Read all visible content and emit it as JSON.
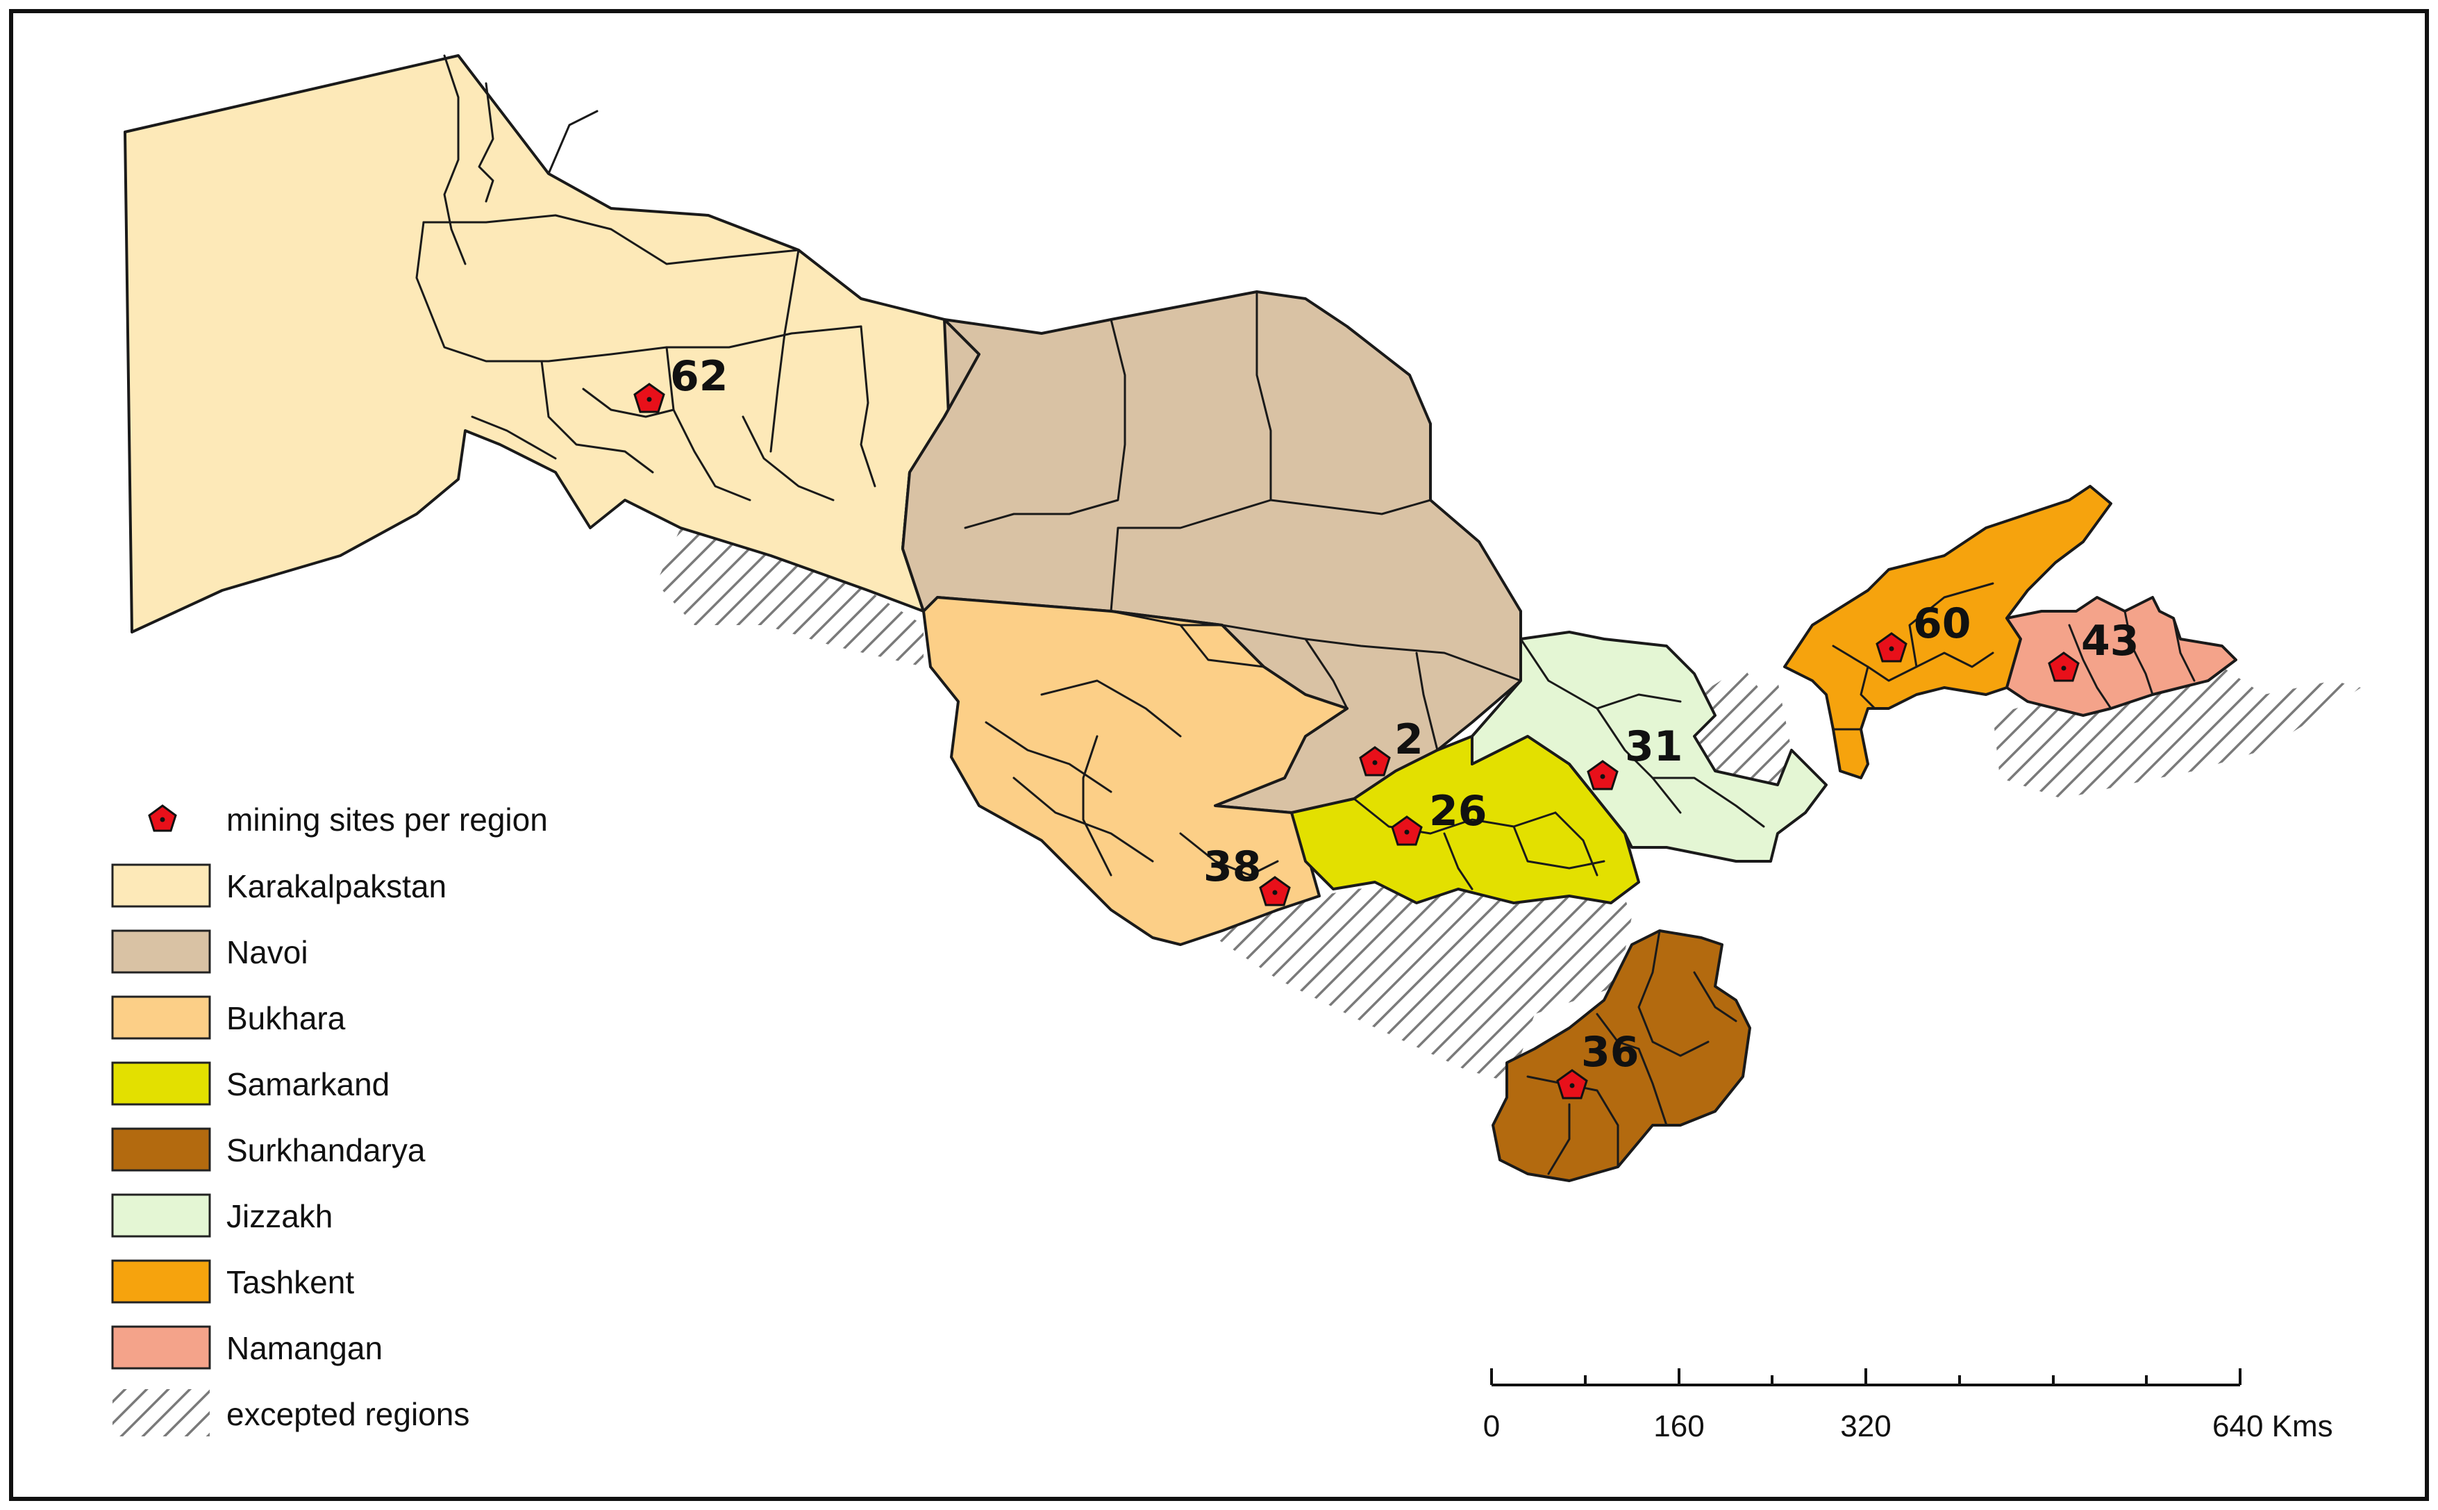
{
  "colors": {
    "karakalpakstan": "#fde9b8",
    "navoi": "#d9c2a4",
    "bukhara": "#fccf87",
    "samarkand": "#e3e000",
    "surkhandarya": "#b36a0f",
    "jizzakh": "#e4f6d4",
    "tashkent": "#f6a30d",
    "namangan": "#f4a38a",
    "marker": "#e8101a",
    "hatch": "#7a7a7a"
  },
  "regions": [
    {
      "id": "karakalpakstan",
      "count": "62"
    },
    {
      "id": "navoi",
      "count": "2"
    },
    {
      "id": "bukhara",
      "count": "38"
    },
    {
      "id": "samarkand",
      "count": "26"
    },
    {
      "id": "surkhandarya",
      "count": "36"
    },
    {
      "id": "jizzakh",
      "count": "31"
    },
    {
      "id": "tashkent",
      "count": "60"
    },
    {
      "id": "namangan",
      "count": "43"
    }
  ],
  "legend": {
    "marker_label": "mining sites per region",
    "items": [
      {
        "label": "Karakalpakstan",
        "color": "#fde9b8"
      },
      {
        "label": "Navoi",
        "color": "#d9c2a4"
      },
      {
        "label": "Bukhara",
        "color": "#fccf87"
      },
      {
        "label": "Samarkand",
        "color": "#e3e000"
      },
      {
        "label": "Surkhandarya",
        "color": "#b36a0f"
      },
      {
        "label": "Jizzakh",
        "color": "#e4f6d4"
      },
      {
        "label": "Tashkent",
        "color": "#f6a30d"
      },
      {
        "label": "Namangan",
        "color": "#f4a38a"
      }
    ],
    "hatch_label": "excepted regions"
  },
  "scale_bar": {
    "labels": [
      "0",
      "160",
      "320",
      "640 Kms"
    ]
  }
}
